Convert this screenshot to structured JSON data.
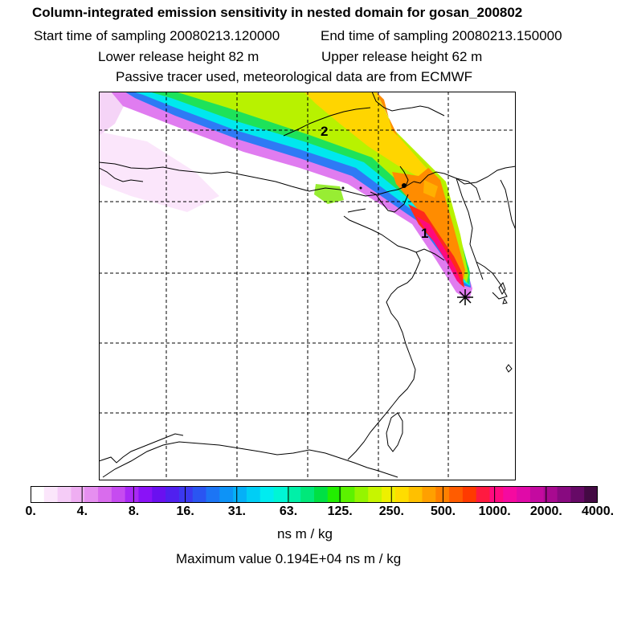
{
  "header": {
    "title": "Column-integrated emission sensitivity in nested domain for gosan_200802",
    "start_time": "Start time of sampling 20080213.120000",
    "end_time": "End time of sampling 20080213.150000",
    "lower_release": "Lower release height   82 m",
    "upper_release": "Upper release height   62 m",
    "tracer_note": "Passive tracer used, meteorological data are from ECMWF"
  },
  "map": {
    "labels": [
      "2",
      "1"
    ],
    "release_marker": "asterisk-icon"
  },
  "colorbar": {
    "ticks": [
      "0.",
      "4.",
      "8.",
      "16.",
      "31.",
      "63.",
      "125.",
      "250.",
      "500.",
      "1000.",
      "2000.",
      "4000."
    ],
    "colors": [
      "#ffffff",
      "#fbe6fb",
      "#f5ccf7",
      "#efaef2",
      "#e68ff0",
      "#d96ced",
      "#c64bf0",
      "#a929f5",
      "#8a12f7",
      "#6a10f0",
      "#5020ef",
      "#3b38f0",
      "#2a55f2",
      "#1c75f5",
      "#0d93f7",
      "#05b0f7",
      "#00cef5",
      "#00ecf0",
      "#00f5d5",
      "#00f0a8",
      "#00e87a",
      "#00e044",
      "#22ee00",
      "#5cf200",
      "#94f500",
      "#c7f500",
      "#eef000",
      "#ffdd00",
      "#ffc000",
      "#ffa000",
      "#ff8000",
      "#ff5c00",
      "#ff3a00",
      "#ff1a40",
      "#ff0a80",
      "#f50aa0",
      "#e00aa8",
      "#c40aa0",
      "#a80a90",
      "#880a80",
      "#660a66",
      "#440a44"
    ],
    "units": "ns m / kg",
    "max_value": "Maximum value  0.194E+04 ns m / kg"
  }
}
